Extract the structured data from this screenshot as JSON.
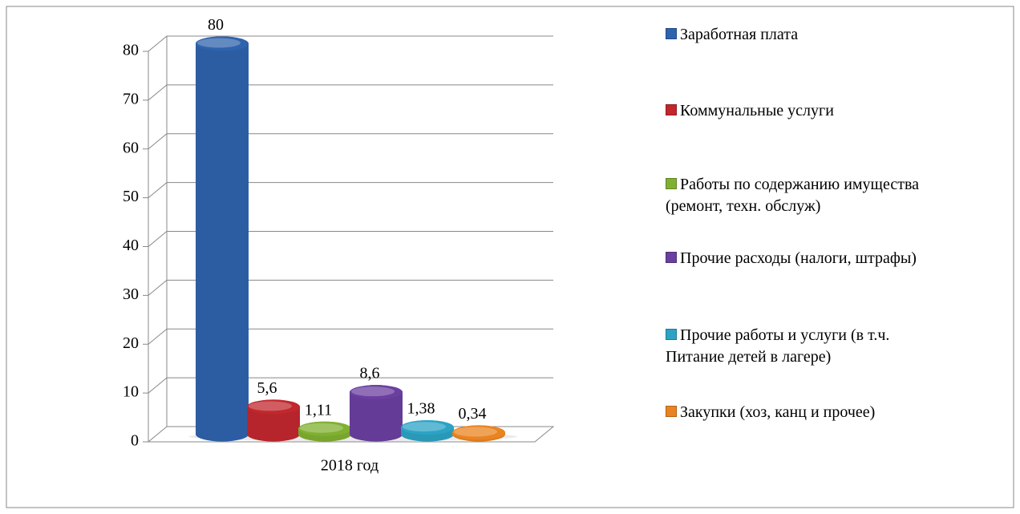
{
  "chart_data": {
    "type": "bar3d",
    "categories": [
      "2018 год"
    ],
    "series": [
      {
        "name": "Заработная плата",
        "color": "#2f63ad",
        "values": [
          80
        ],
        "value_labels": [
          "80"
        ]
      },
      {
        "name": "Коммунальные услуги",
        "color": "#c1272d",
        "values": [
          5.6
        ],
        "value_labels": [
          "5,6"
        ]
      },
      {
        "name": "Работы по содержанию имущества (ремонт, техн. обслуж)",
        "color": "#80b030",
        "values": [
          1.11
        ],
        "value_labels": [
          "1,11"
        ]
      },
      {
        "name": "Прочие расходы (налоги, штрафы)",
        "color": "#6b3fa0",
        "values": [
          8.6
        ],
        "value_labels": [
          "8,6"
        ]
      },
      {
        "name": "Прочие работы и услуги (в т.ч. Питание детей в лагере)",
        "color": "#2ba3c4",
        "values": [
          1.38
        ],
        "value_labels": [
          "1,38"
        ]
      },
      {
        "name": "Закупки (хоз, канц и прочее)",
        "color": "#ea8420",
        "values": [
          0.34
        ],
        "value_labels": [
          "0,34"
        ]
      }
    ],
    "ylim": [
      0,
      80
    ],
    "yticks": [
      0,
      10,
      20,
      30,
      40,
      50,
      60,
      70,
      80
    ],
    "grid": true,
    "legend": "right"
  }
}
